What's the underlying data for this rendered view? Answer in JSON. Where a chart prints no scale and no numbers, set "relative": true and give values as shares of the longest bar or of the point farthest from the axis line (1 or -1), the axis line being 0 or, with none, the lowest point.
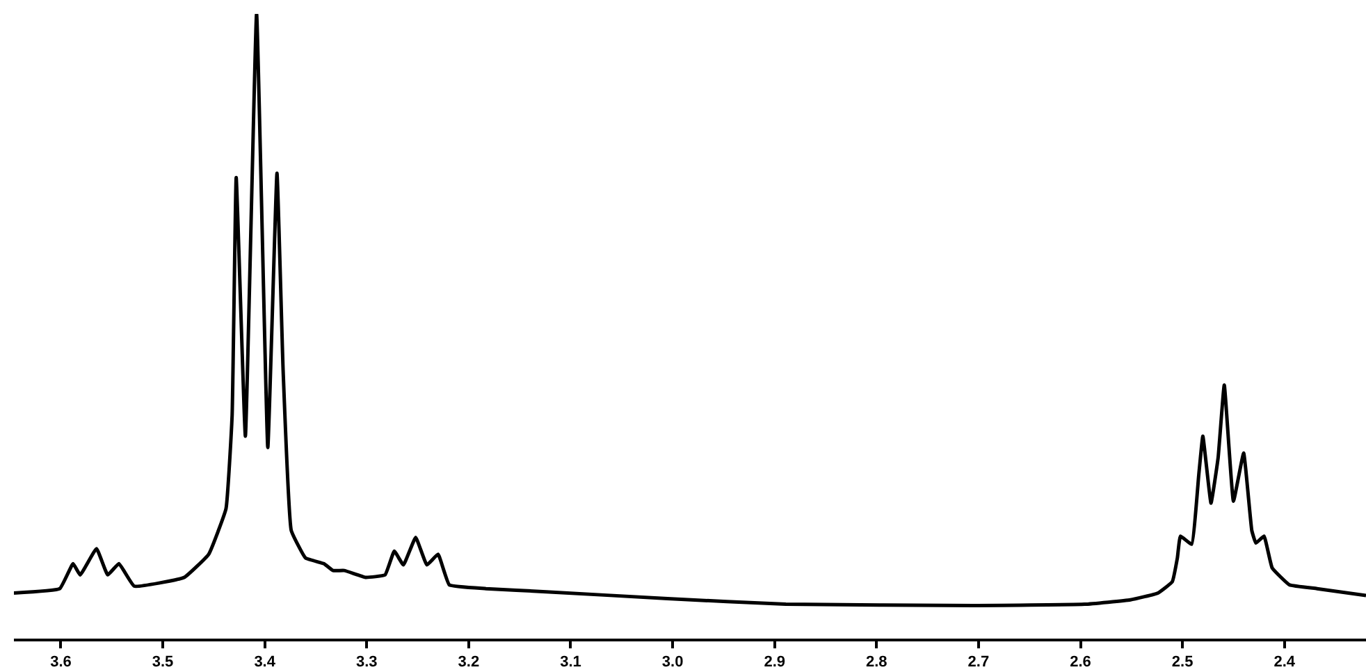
{
  "chart_data": {
    "type": "line",
    "relative": true,
    "color": "#000000",
    "marker": "none",
    "line_style": "solid",
    "x": [
      3.646,
      3.601,
      3.588,
      3.581,
      3.565,
      3.554,
      3.543,
      3.528,
      3.479,
      3.455,
      3.438,
      3.432,
      3.428,
      3.419,
      3.408,
      3.397,
      3.388,
      3.382,
      3.374,
      3.36,
      3.342,
      3.333,
      3.322,
      3.301,
      3.282,
      3.273,
      3.264,
      3.252,
      3.241,
      3.23,
      3.219,
      3.183,
      3.124,
      3.005,
      2.889,
      2.705,
      2.596,
      2.551,
      2.524,
      2.51,
      2.505,
      2.502,
      2.491,
      2.484,
      2.48,
      2.472,
      2.465,
      2.459,
      2.45,
      2.44,
      2.432,
      2.428,
      2.42,
      2.412,
      2.395,
      2.368,
      2.32
    ],
    "values": [
      0.073,
      0.08,
      0.12,
      0.102,
      0.144,
      0.102,
      0.12,
      0.084,
      0.098,
      0.135,
      0.208,
      0.357,
      0.738,
      0.324,
      1.0,
      0.306,
      0.745,
      0.43,
      0.173,
      0.129,
      0.12,
      0.109,
      0.109,
      0.098,
      0.102,
      0.14,
      0.118,
      0.162,
      0.118,
      0.135,
      0.086,
      0.08,
      0.075,
      0.064,
      0.055,
      0.053,
      0.055,
      0.062,
      0.073,
      0.091,
      0.129,
      0.164,
      0.151,
      0.262,
      0.324,
      0.217,
      0.29,
      0.406,
      0.22,
      0.297,
      0.173,
      0.153,
      0.164,
      0.113,
      0.086,
      0.08,
      0.069
    ],
    "xlim": [
      3.646,
      2.32
    ],
    "xticks": [
      3.6,
      3.5,
      3.4,
      3.3,
      3.2,
      3.1,
      {
        "value": 3.0,
        "label": "3.0"
      },
      2.9,
      2.8,
      2.7,
      2.6,
      2.5,
      2.4
    ]
  }
}
